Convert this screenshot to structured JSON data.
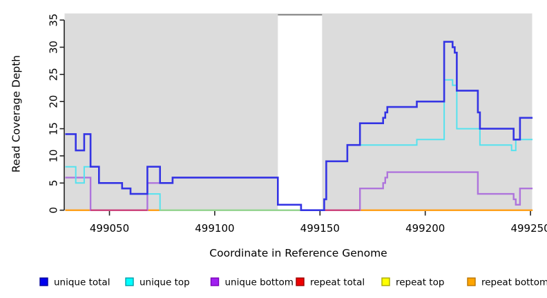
{
  "chart_data": {
    "type": "line",
    "subtype": "step-coverage",
    "title": "",
    "xlabel": "Coordinate in Reference Genome",
    "ylabel": "Read Coverage Depth",
    "xlim": [
      499028,
      499251
    ],
    "ylim": [
      0,
      36
    ],
    "x_ticks": [
      499050,
      499100,
      499150,
      499200,
      499250
    ],
    "y_ticks": [
      0,
      5,
      10,
      15,
      20,
      25,
      30,
      35
    ],
    "grid": false,
    "plot_background": "#dcdcdc",
    "masked_region": {
      "start": 499130,
      "end": 499151,
      "fill": "#ffffff",
      "cap_color": "#8c8c8c",
      "cap_value": 36
    },
    "x_end": 499251,
    "series": [
      {
        "name": "unique total",
        "color": "#3434e4",
        "line_width": 2.6,
        "steps": [
          [
            499029,
            14
          ],
          [
            499034,
            11
          ],
          [
            499038,
            14
          ],
          [
            499041,
            8
          ],
          [
            499045,
            5
          ],
          [
            499056,
            4
          ],
          [
            499060,
            3
          ],
          [
            499068,
            8
          ],
          [
            499074,
            5
          ],
          [
            499080,
            6
          ],
          [
            499130,
            1
          ],
          [
            499141,
            0
          ],
          [
            499152,
            2
          ],
          [
            499153,
            9
          ],
          [
            499163,
            12
          ],
          [
            499169,
            16
          ],
          [
            499180,
            17
          ],
          [
            499181,
            18
          ],
          [
            499182,
            19
          ],
          [
            499196,
            20
          ],
          [
            499209,
            31
          ],
          [
            499213,
            30
          ],
          [
            499214,
            29
          ],
          [
            499215,
            22
          ],
          [
            499225,
            18
          ],
          [
            499226,
            15
          ],
          [
            499242,
            13
          ],
          [
            499245,
            17
          ]
        ]
      },
      {
        "name": "unique top",
        "color": "#55e2ee",
        "line_width": 2.0,
        "steps": [
          [
            499029,
            8
          ],
          [
            499034,
            5
          ],
          [
            499038,
            8
          ],
          [
            499045,
            5
          ],
          [
            499056,
            4
          ],
          [
            499060,
            3
          ],
          [
            499074,
            0
          ],
          [
            499152,
            2
          ],
          [
            499153,
            9
          ],
          [
            499163,
            12
          ],
          [
            499196,
            13
          ],
          [
            499209,
            24
          ],
          [
            499213,
            23
          ],
          [
            499215,
            15
          ],
          [
            499226,
            12
          ],
          [
            499241,
            11
          ],
          [
            499243,
            13
          ]
        ]
      },
      {
        "name": "unique bottom",
        "color": "#ae74dc",
        "line_width": 2.4,
        "steps": [
          [
            499029,
            6
          ],
          [
            499041,
            0
          ],
          [
            499068,
            5
          ],
          [
            499080,
            6
          ],
          [
            499130,
            1
          ],
          [
            499141,
            0
          ],
          [
            499169,
            4
          ],
          [
            499180,
            5
          ],
          [
            499181,
            6
          ],
          [
            499182,
            7
          ],
          [
            499225,
            3
          ],
          [
            499242,
            2
          ],
          [
            499243,
            1
          ],
          [
            499245,
            4
          ]
        ]
      },
      {
        "name": "repeat total",
        "color": "#d03a3a",
        "line_width": 2.0,
        "steps": [
          [
            499029,
            0
          ]
        ]
      },
      {
        "name": "repeat top",
        "color": "#e8e800",
        "line_width": 2.0,
        "steps": [
          [
            499029,
            0
          ]
        ]
      },
      {
        "name": "repeat bottom",
        "color": "#ffa11e",
        "line_width": 2.5,
        "steps": [
          [
            499029,
            0
          ]
        ]
      }
    ],
    "baseline_overlap_segments": [
      {
        "from": 499041,
        "to": 499068,
        "value": 0,
        "color": "#ce3d75",
        "layer": 1,
        "meaning": "unique-bottom-at-zero-over-repeat-lines"
      },
      {
        "from": 499152,
        "to": 499169,
        "value": 0,
        "color": "#ce3d75",
        "layer": 1,
        "meaning": "unique-bottom-at-zero-over-repeat-lines"
      },
      {
        "from": 499074,
        "to": 499141,
        "value": 0,
        "color": "#94d894",
        "layer": 2,
        "meaning": "unique-top-at-zero-over-repeat-lines"
      }
    ],
    "legend": {
      "position": "bottom",
      "items": [
        {
          "label": "unique total",
          "fill": "#0000ee",
          "border": "#00009b"
        },
        {
          "label": "unique top",
          "fill": "#00ffff",
          "border": "#009da8"
        },
        {
          "label": "unique bottom",
          "fill": "#a020f0",
          "border": "#7a00b8"
        },
        {
          "label": "repeat total",
          "fill": "#ee0000",
          "border": "#990000"
        },
        {
          "label": "repeat top",
          "fill": "#ffff00",
          "border": "#a8a800"
        },
        {
          "label": "repeat bottom",
          "fill": "#ffa500",
          "border": "#b87400"
        }
      ]
    },
    "axis_color": "#222222"
  }
}
